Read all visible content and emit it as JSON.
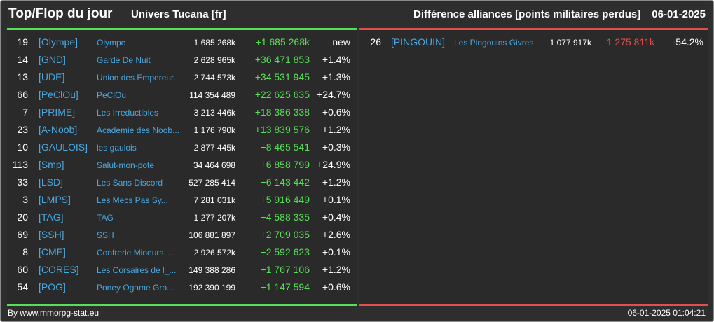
{
  "header": {
    "title": "Top/Flop du jour",
    "universe": "Univers Tucana [fr]",
    "subtitle": "Différence alliances [points militaires perdus]",
    "date": "06-01-2025"
  },
  "colors": {
    "positive": "#55e055",
    "negative": "#e05050",
    "link": "#4aa8e0",
    "background": "#2e2e2e"
  },
  "top": [
    {
      "rank": "19",
      "tag": "[Olympe]",
      "name": "Olympe",
      "points": "1 685 268k",
      "diff": "+1 685 268k",
      "pct": "new"
    },
    {
      "rank": "14",
      "tag": "[GND]",
      "name": "Garde De Nuit",
      "points": "2 628 965k",
      "diff": "+36 471 853",
      "pct": "+1.4%"
    },
    {
      "rank": "13",
      "tag": "[UDE]",
      "name": "Union des Empereur...",
      "points": "2 744 573k",
      "diff": "+34 531 945",
      "pct": "+1.3%"
    },
    {
      "rank": "66",
      "tag": "[PeClOu]",
      "name": "PeClOu",
      "points": "114 354 489",
      "diff": "+22 625 635",
      "pct": "+24.7%"
    },
    {
      "rank": "7",
      "tag": "[PRIME]",
      "name": "Les Irreductibles",
      "points": "3 213 446k",
      "diff": "+18 386 338",
      "pct": "+0.6%"
    },
    {
      "rank": "23",
      "tag": "[A-Noob]",
      "name": "Academie des Noob...",
      "points": "1 176 790k",
      "diff": "+13 839 576",
      "pct": "+1.2%"
    },
    {
      "rank": "10",
      "tag": "[GAULOIS]",
      "name": "les gaulois",
      "points": "2 877 445k",
      "diff": "+8 465 541",
      "pct": "+0.3%"
    },
    {
      "rank": "113",
      "tag": "[Smp]",
      "name": "Salut-mon-pote",
      "points": "34 464 698",
      "diff": "+6 858 799",
      "pct": "+24.9%"
    },
    {
      "rank": "33",
      "tag": "[LSD]",
      "name": "Les Sans Discord",
      "points": "527 285 414",
      "diff": "+6 143 442",
      "pct": "+1.2%"
    },
    {
      "rank": "3",
      "tag": "[LMPS]",
      "name": "Les Mecs Pas Sy...",
      "points": "7 281 031k",
      "diff": "+5 916 449",
      "pct": "+0.1%"
    },
    {
      "rank": "20",
      "tag": "[TAG]",
      "name": "TAG",
      "points": "1 277 207k",
      "diff": "+4 588 335",
      "pct": "+0.4%"
    },
    {
      "rank": "69",
      "tag": "[SSH]",
      "name": "SSH",
      "points": "106 881 897",
      "diff": "+2 709 035",
      "pct": "+2.6%"
    },
    {
      "rank": "8",
      "tag": "[CME]",
      "name": "Confrerie Mineurs ...",
      "points": "2 926 572k",
      "diff": "+2 592 623",
      "pct": "+0.1%"
    },
    {
      "rank": "60",
      "tag": "[CORES]",
      "name": "Les Corsaires de l_...",
      "points": "149 388 286",
      "diff": "+1 767 106",
      "pct": "+1.2%"
    },
    {
      "rank": "54",
      "tag": "[POG]",
      "name": "Poney Ogame Gro...",
      "points": "192 390 199",
      "diff": "+1 147 594",
      "pct": "+0.6%"
    }
  ],
  "flop": [
    {
      "rank": "26",
      "tag": "[PINGOUIN]",
      "name": "Les Pingouins Givres",
      "points": "1 077 917k",
      "diff": "-1 275 811k",
      "pct": "-54.2%"
    }
  ],
  "footer": {
    "source": "By www.mmorpg-stat.eu",
    "timestamp": "06-01-2025 01:04:21"
  }
}
